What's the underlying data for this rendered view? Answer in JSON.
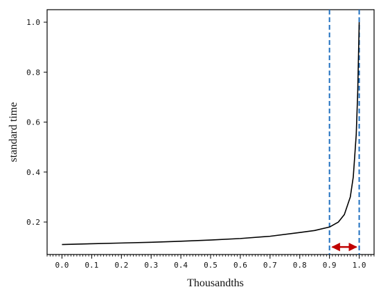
{
  "chart_data": {
    "type": "line",
    "title": "",
    "xlabel": "Thousandths",
    "ylabel": "standard time",
    "xlim": [
      -0.05,
      1.05
    ],
    "ylim": [
      0.07,
      1.05
    ],
    "x_ticks": [
      0.0,
      0.1,
      0.2,
      0.3,
      0.4,
      0.5,
      0.6,
      0.7,
      0.8,
      0.9,
      1.0
    ],
    "x_tick_labels": [
      "0.0",
      "0.1",
      "0.2",
      "0.3",
      "0.4",
      "0.5",
      "0.6",
      "0.7",
      "0.8",
      "0.9",
      "1.0"
    ],
    "y_ticks": [
      0.2,
      0.4,
      0.6,
      0.8,
      1.0
    ],
    "y_tick_labels": [
      "0.2",
      "0.4",
      "0.6",
      "0.8",
      "1.0"
    ],
    "grid": false,
    "series": [
      {
        "color": "#000000",
        "x": [
          0.0,
          0.1,
          0.2,
          0.3,
          0.4,
          0.5,
          0.6,
          0.7,
          0.8,
          0.85,
          0.9,
          0.93,
          0.95,
          0.97,
          0.98,
          0.99,
          0.995,
          1.0
        ],
        "y": [
          0.11,
          0.113,
          0.116,
          0.119,
          0.123,
          0.128,
          0.134,
          0.143,
          0.158,
          0.166,
          0.18,
          0.2,
          0.23,
          0.3,
          0.38,
          0.55,
          0.72,
          1.0
        ]
      }
    ],
    "reference_lines": [
      {
        "axis": "x",
        "value": 0.9,
        "style": "dashed",
        "color": "#1f6fbf"
      },
      {
        "axis": "x",
        "value": 1.0,
        "style": "dashed",
        "color": "#1f6fbf"
      }
    ],
    "annotations": [
      {
        "type": "double-arrow",
        "from": 0.9,
        "to": 1.0,
        "y": 0.1,
        "color": "#c00000"
      }
    ]
  }
}
